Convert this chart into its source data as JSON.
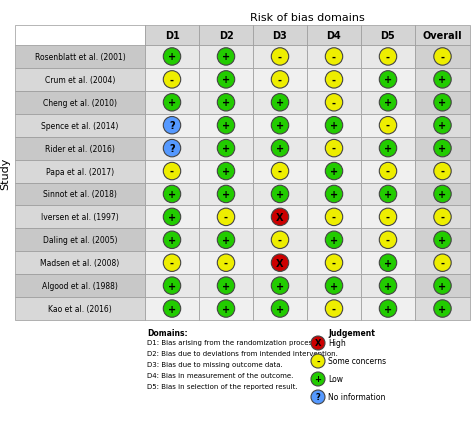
{
  "title": "Risk of bias domains",
  "ylabel": "Study",
  "columns": [
    "D1",
    "D2",
    "D3",
    "D4",
    "D5",
    "Overall"
  ],
  "studies": [
    "Rosenblatt et al. (2001)",
    "Crum et al. (2004)",
    "Cheng et al. (2010)",
    "Spence et al. (2014)",
    "Rider et al. (2016)",
    "Papa et al. (2017)",
    "Sinnot et al. (2018)",
    "Iversen et al. (1997)",
    "Daling et al. (2005)",
    "Madsen et al. (2008)",
    "Algood et al. (1988)",
    "Kao et al. (2016)"
  ],
  "data": [
    [
      "low",
      "low",
      "some",
      "some",
      "some",
      "some"
    ],
    [
      "some",
      "low",
      "some",
      "some",
      "low",
      "low"
    ],
    [
      "low",
      "low",
      "low",
      "some",
      "low",
      "low"
    ],
    [
      "info",
      "low",
      "low",
      "low",
      "some",
      "low"
    ],
    [
      "info",
      "low",
      "low",
      "some",
      "low",
      "low"
    ],
    [
      "some",
      "low",
      "some",
      "low",
      "some",
      "some"
    ],
    [
      "low",
      "low",
      "low",
      "low",
      "low",
      "low"
    ],
    [
      "low",
      "some",
      "high",
      "some",
      "some",
      "some"
    ],
    [
      "low",
      "low",
      "some",
      "low",
      "some",
      "low"
    ],
    [
      "some",
      "some",
      "high",
      "some",
      "low",
      "some"
    ],
    [
      "low",
      "low",
      "low",
      "low",
      "low",
      "low"
    ],
    [
      "low",
      "low",
      "low",
      "some",
      "low",
      "low"
    ]
  ],
  "colors": {
    "low": "#22cc00",
    "some": "#eeee00",
    "high": "#cc0000",
    "info": "#5599ff"
  },
  "symbols": {
    "low": "+",
    "some": "-",
    "high": "X",
    "info": "?"
  },
  "bg_study_even": "#c8c8c8",
  "bg_study_odd": "#d8d8d8",
  "bg_data_even": "#e8e8e8",
  "bg_data_odd": "#f0f0f0",
  "bg_overall_even": "#d0d0d0",
  "bg_overall_odd": "#dcdcdc",
  "bg_header": "#d4d4d4",
  "border_col": "#999999",
  "domain_notes": [
    "Domains:",
    "D1: Bias arising from the randomization process.",
    "D2: Bias due to deviations from intended intervention.",
    "D3: Bias due to missing outcome data.",
    "D4: Bias in measurement of the outcome.",
    "D5: Bias in selection of the reported result."
  ],
  "legend_title": "Judgement",
  "legend_items": [
    "High",
    "Some concerns",
    "Low",
    "No information"
  ],
  "legend_colors": [
    "#cc0000",
    "#eeee00",
    "#22cc00",
    "#5599ff"
  ],
  "legend_symbols": [
    "X",
    "-",
    "+",
    "?"
  ]
}
